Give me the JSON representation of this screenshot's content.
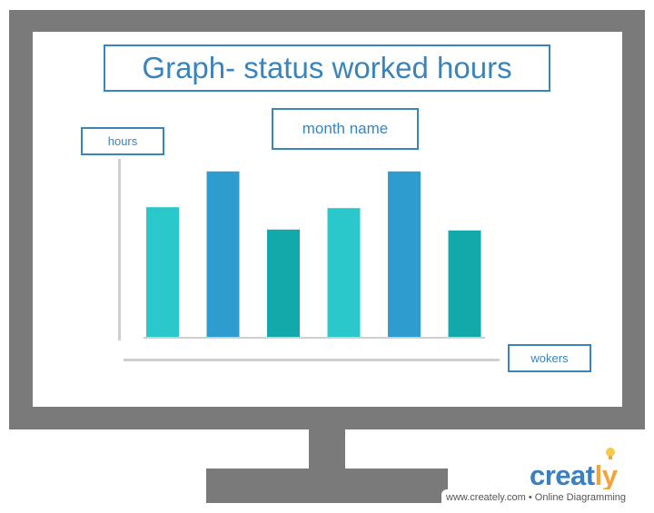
{
  "title": "Graph- status worked hours",
  "month_label": "month name",
  "y_axis_label": "hours",
  "x_axis_label": "wokers",
  "brand": {
    "name_main": "creat",
    "name_accent": "ly",
    "bulb_icon": "lightbulb-icon",
    "tagline": "www.creately.com • Online Diagramming"
  },
  "colors": {
    "frame": "#7a7a7a",
    "accent_text": "#3a84bd",
    "bar_teal_light": "#2bc8cb",
    "bar_blue": "#2e9ccf",
    "bar_teal_dark": "#13a9ab"
  },
  "chart_data": {
    "type": "bar",
    "title": "Graph- status worked hours",
    "xlabel": "wokers",
    "ylabel": "hours",
    "categories": [
      "",
      "",
      "",
      "",
      "",
      ""
    ],
    "values": [
      146,
      186,
      121,
      145,
      186,
      120
    ],
    "bar_colors": [
      "#2bc8cb",
      "#2e9ccf",
      "#13a9ab",
      "#2bc8cb",
      "#2e9ccf",
      "#13a9ab"
    ],
    "ylim": [
      0,
      200
    ],
    "grid": false,
    "legend": "none"
  }
}
